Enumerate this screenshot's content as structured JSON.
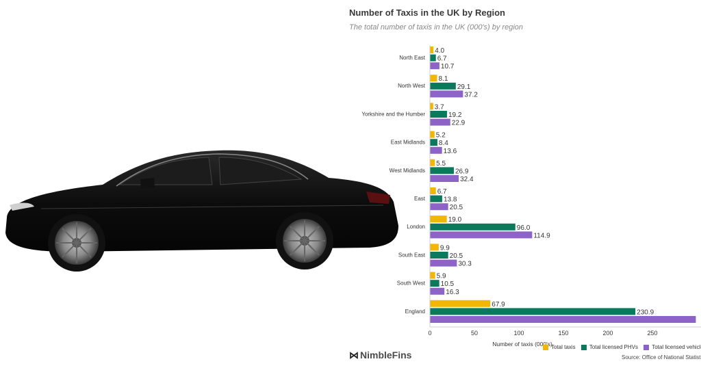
{
  "chart_data": {
    "type": "bar",
    "orientation": "horizontal",
    "title": "Number of Taxis in the UK by Region",
    "subtitle": "The total number of taxis in the UK (000's) by region",
    "xlabel": "Number of taxis (000's)",
    "categories": [
      "North East",
      "North West",
      "Yorkshire and the Humber",
      "East Midlands",
      "West Midlands",
      "East",
      "London",
      "South East",
      "South West",
      "England"
    ],
    "series": [
      {
        "name": "Total taxis",
        "color": "#f2b705",
        "values": [
          4.0,
          8.1,
          3.7,
          5.2,
          5.5,
          6.7,
          19.0,
          9.9,
          5.9,
          67.9
        ]
      },
      {
        "name": "Total licensed PHVs",
        "color": "#0b7a5c",
        "values": [
          6.7,
          29.1,
          19.2,
          8.4,
          26.9,
          13.8,
          96.0,
          20.5,
          10.5,
          230.9
        ]
      },
      {
        "name": "Total licensed vehicles",
        "color": "#8e63c8",
        "values": [
          10.7,
          37.2,
          22.9,
          13.6,
          32.4,
          20.5,
          114.9,
          30.3,
          16.3,
          298.8
        ]
      }
    ],
    "value_labels": [
      [
        "4.0",
        "8.1",
        "3.7",
        "5.2",
        "5.5",
        "6.7",
        "19.0",
        "9.9",
        "5.9",
        "67.9"
      ],
      [
        "6.7",
        "29.1",
        "19.2",
        "8.4",
        "26.9",
        "13.8",
        "96.0",
        "20.5",
        "10.5",
        "230.9"
      ],
      [
        "10.7",
        "37.2",
        "22.9",
        "13.6",
        "32.4",
        "20.5",
        "114.9",
        "30.3",
        "16.3",
        ""
      ]
    ],
    "xticks": [
      0,
      50,
      100,
      150,
      200,
      250
    ],
    "xlim": [
      0,
      300
    ],
    "grid": false,
    "legend_position": "bottom"
  },
  "legend": {
    "items": [
      {
        "label": "Total taxis",
        "color": "#f2b705"
      },
      {
        "label": "Total licensed PHVs",
        "color": "#0b7a5c"
      },
      {
        "label": "Total licensed vehicles",
        "color": "#8e63c8"
      }
    ]
  },
  "brand": {
    "name": "NimbleFins",
    "mark": "⋈"
  },
  "source": "Source: Office of National Statistics",
  "image": {
    "subject": "black-sedan-car-icon"
  }
}
